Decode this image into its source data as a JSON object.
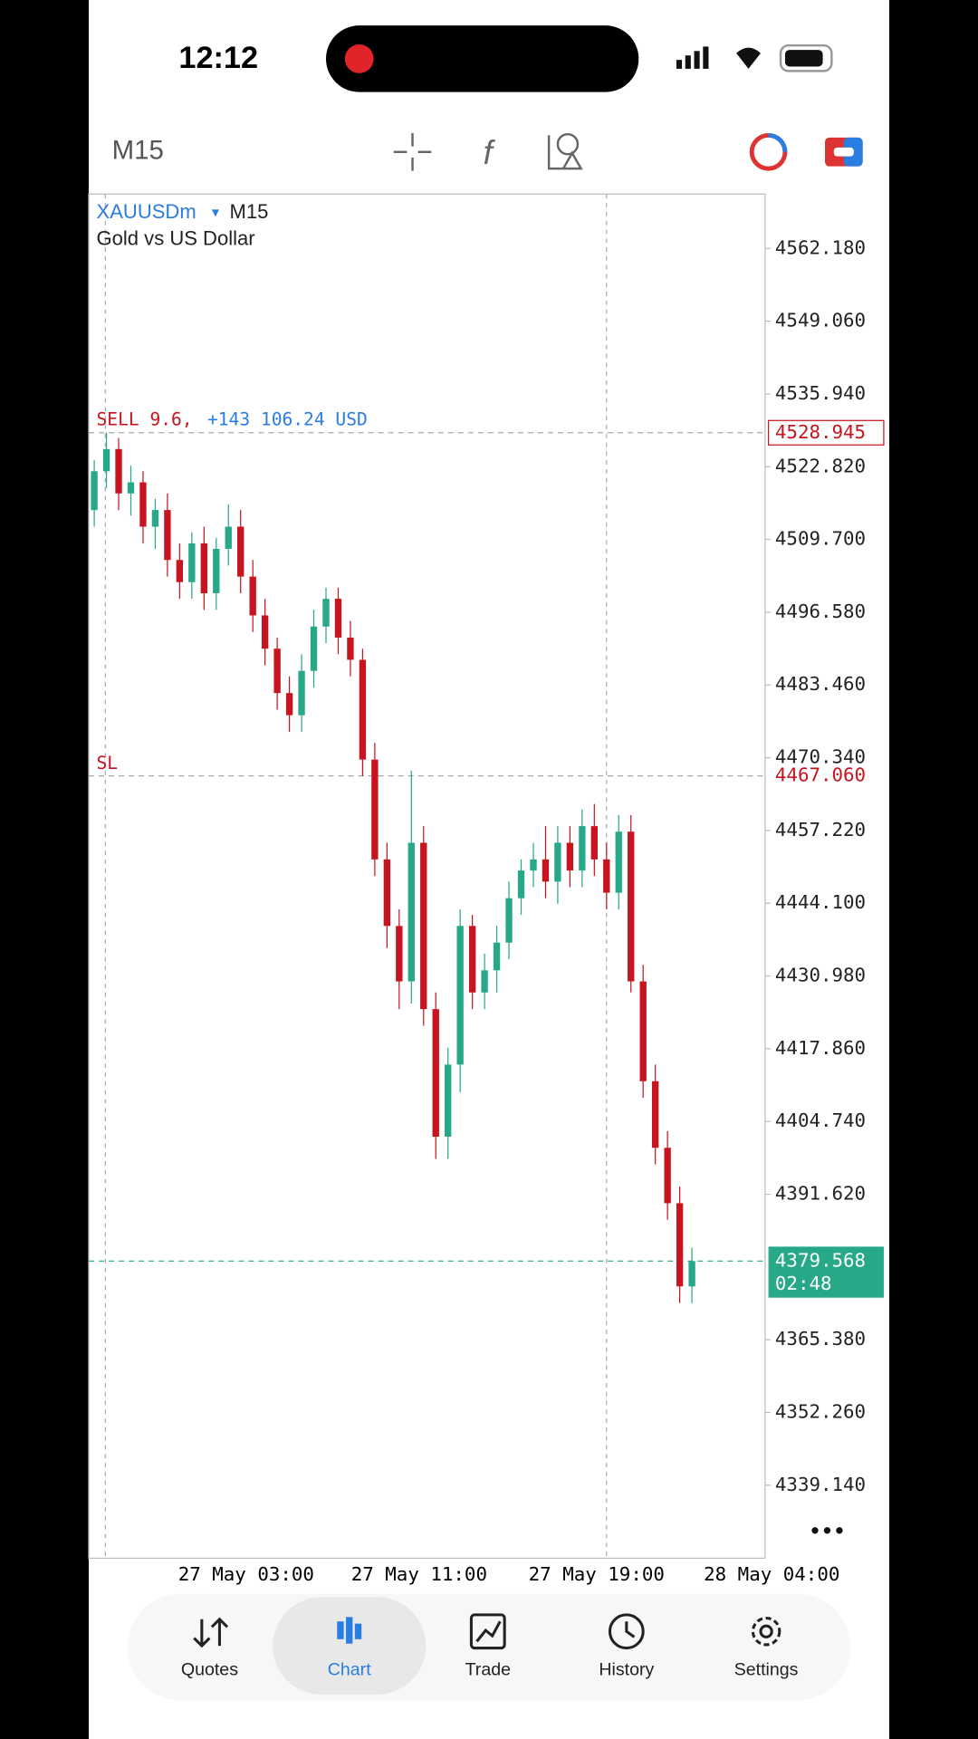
{
  "status_bar": {
    "time": "12:12"
  },
  "toolbar": {
    "timeframe": "M15"
  },
  "chart": {
    "symbol": "XAUUSDm",
    "symbol_arrow": "▾",
    "timeframe": "M15",
    "description": "Gold vs US Dollar",
    "order_label": "SELL 9.6,",
    "order_profit": "+143 106.24 USD",
    "order_price": {
      "value": 4528.945,
      "label": "4528.945"
    },
    "sl_label": "SL",
    "sl_price": {
      "value": 4467.06,
      "label": "4467.060"
    },
    "bid": {
      "value": 4379.568,
      "label": "4379.568"
    },
    "countdown": "02:48",
    "ylim": [
      4325.98,
      4571.98
    ],
    "yticks": [
      {
        "value": 4562.18,
        "label": "4562.180"
      },
      {
        "value": 4549.06,
        "label": "4549.060"
      },
      {
        "value": 4535.94,
        "label": "4535.940"
      },
      {
        "value": 4522.82,
        "label": "4522.820"
      },
      {
        "value": 4509.7,
        "label": "4509.700"
      },
      {
        "value": 4496.58,
        "label": "4496.580"
      },
      {
        "value": 4483.46,
        "label": "4483.460"
      },
      {
        "value": 4470.34,
        "label": "4470.340"
      },
      {
        "value": 4457.22,
        "label": "4457.220"
      },
      {
        "value": 4444.1,
        "label": "4444.100"
      },
      {
        "value": 4430.98,
        "label": "4430.980"
      },
      {
        "value": 4417.86,
        "label": "4417.860"
      },
      {
        "value": 4404.74,
        "label": "4404.740"
      },
      {
        "value": 4391.62,
        "label": "4391.620"
      },
      {
        "value": 4365.38,
        "label": "4365.380"
      },
      {
        "value": 4352.26,
        "label": "4352.260"
      },
      {
        "value": 4339.14,
        "label": "4339.140"
      }
    ],
    "xticks": [
      "27 May 03:00",
      "27 May 11:00",
      "27 May 19:00",
      "28 May 04:00"
    ],
    "up_color": "#26a889",
    "down_color": "#c8141e",
    "open": [
      4515,
      4522,
      4526,
      4518,
      4520,
      4512,
      4515,
      4506,
      4502,
      4509,
      4500,
      4508,
      4512,
      4503,
      4496,
      4490,
      4482,
      4478,
      4486,
      4494,
      4499,
      4492,
      4488,
      4470,
      4452,
      4440,
      4430,
      4455,
      4425,
      4402,
      4415,
      4440,
      4428,
      4432,
      4437,
      4445,
      4450,
      4452,
      4448,
      4455,
      4450,
      4458,
      4452,
      4446,
      4457,
      4430,
      4412,
      4400,
      4390,
      4375
    ],
    "high": [
      4524,
      4529,
      4528,
      4523,
      4522,
      4517,
      4518,
      4509,
      4511,
      4512,
      4510,
      4516,
      4515,
      4506,
      4499,
      4492,
      4485,
      4489,
      4497,
      4501,
      4501,
      4495,
      4490,
      4473,
      4455,
      4443,
      4468,
      4458,
      4428,
      4418,
      4443,
      4442,
      4435,
      4440,
      4448,
      4452,
      4455,
      4458,
      4458,
      4458,
      4461,
      4462,
      4455,
      4460,
      4460,
      4433,
      4415,
      4403,
      4393,
      4382
    ],
    "low": [
      4512,
      4519,
      4515,
      4514,
      4509,
      4508,
      4503,
      4499,
      4499,
      4497,
      4497,
      4505,
      4500,
      4493,
      4487,
      4479,
      4475,
      4475,
      4483,
      4491,
      4489,
      4485,
      4467,
      4449,
      4436,
      4425,
      4426,
      4422,
      4398,
      4398,
      4410,
      4425,
      4425,
      4428,
      4434,
      4442,
      4447,
      4445,
      4444,
      4447,
      4447,
      4449,
      4443,
      4443,
      4428,
      4409,
      4397,
      4387,
      4372,
      4372
    ],
    "close": [
      4522,
      4526,
      4518,
      4520,
      4512,
      4515,
      4506,
      4502,
      4509,
      4500,
      4508,
      4512,
      4503,
      4496,
      4490,
      4482,
      4478,
      4486,
      4494,
      4499,
      4492,
      4488,
      4470,
      4452,
      4440,
      4430,
      4455,
      4425,
      4402,
      4415,
      4440,
      4428,
      4432,
      4437,
      4445,
      4450,
      4452,
      4448,
      4455,
      4450,
      4458,
      4452,
      4446,
      4457,
      4430,
      4412,
      4400,
      4390,
      4375,
      4379.568
    ]
  },
  "nav": {
    "items": [
      "Quotes",
      "Chart",
      "Trade",
      "History",
      "Settings"
    ]
  }
}
